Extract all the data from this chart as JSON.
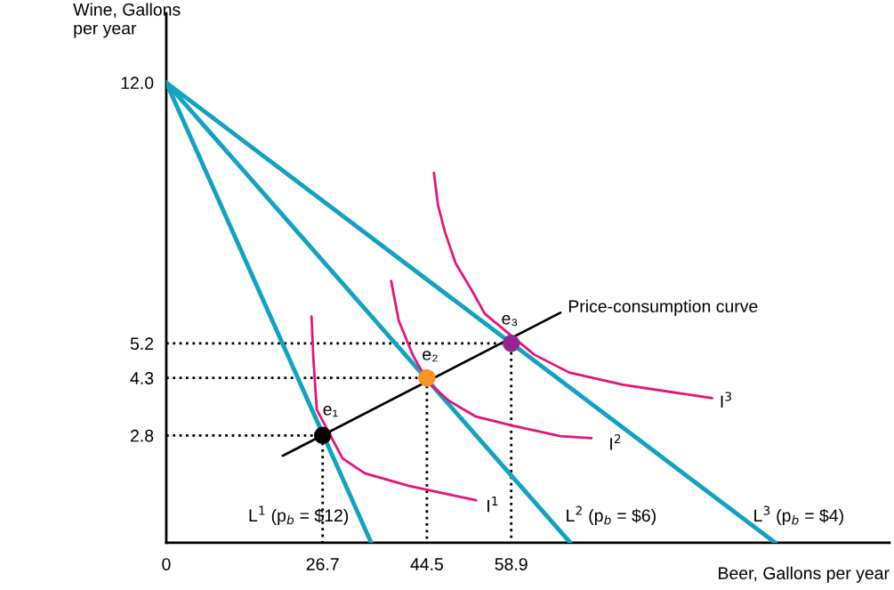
{
  "chart_data": {
    "type": "line",
    "xlabel": "Beer, Gallons per year",
    "ylabel": "Wine, Gallons\nper year",
    "xlim": [
      0,
      123.5
    ],
    "ylim": [
      0,
      13.8
    ],
    "xticks": [
      {
        "value": 0,
        "label": "0"
      },
      26.7,
      44.5,
      58.9
    ],
    "yticks": [
      2.8,
      4.3,
      5.2,
      {
        "value": 12,
        "label": "12.0"
      }
    ],
    "grid": false,
    "series": [
      {
        "name": "L$^{1}$ (p$_{b}$ = $12)",
        "color": "#12a2c4",
        "x": [
          0,
          35.0
        ],
        "values": [
          12.0,
          0
        ]
      },
      {
        "name": "L$^{2}$ (p$_{b}$ = $6)",
        "color": "#12a2c4",
        "x": [
          0,
          69.0
        ],
        "values": [
          12.0,
          0
        ]
      },
      {
        "name": "L$^{3}$ (p$_{b}$ = $4)",
        "color": "#12a2c4",
        "x": [
          0,
          104.0
        ],
        "values": [
          12.0,
          0
        ]
      },
      {
        "name": "Price-consumption curve",
        "color": "#000000",
        "x": [
          19.9,
          67.3
        ],
        "values": [
          2.27,
          6.0
        ]
      },
      {
        "name": "I$^{1}$",
        "color": "#e8127c",
        "x": [
          24.8,
          25.1,
          25.7,
          30.1,
          33.9,
          41.5,
          52.9
        ],
        "values": [
          5.9,
          4.86,
          3.47,
          2.2,
          1.81,
          1.48,
          1.11
        ]
      },
      {
        "name": "I$^{2}$",
        "color": "#e8127c",
        "x": [
          38.4,
          39.7,
          42.2,
          44.8,
          48.3,
          52.9,
          59.0,
          67.3,
          72.6
        ],
        "values": [
          6.83,
          5.79,
          4.86,
          4.17,
          3.7,
          3.29,
          3.06,
          2.78,
          2.73
        ]
      },
      {
        "name": "I$^{3}$",
        "color": "#e8127c",
        "x": [
          45.7,
          46.4,
          47.6,
          49.4,
          52.1,
          54.4,
          62.8,
          68.8,
          78.0,
          93.2
        ],
        "values": [
          9.65,
          8.8,
          8.1,
          7.29,
          6.6,
          5.97,
          4.91,
          4.44,
          4.12,
          3.77
        ]
      },
      {
        "color": "#000000",
        "line_style": "dotted",
        "x": [
          0,
          26.7,
          26.7
        ],
        "values": [
          2.8,
          2.8,
          0
        ]
      },
      {
        "color": "#000000",
        "line_style": "dotted",
        "x": [
          0,
          44.5,
          44.5
        ],
        "values": [
          4.3,
          4.3,
          0
        ]
      },
      {
        "color": "#000000",
        "line_style": "dotted",
        "x": [
          0,
          58.9,
          58.9
        ],
        "values": [
          5.2,
          5.2,
          0
        ]
      },
      {
        "type": "scatter",
        "name": "e₁",
        "color": "#000000",
        "x": [
          26.7
        ],
        "values": [
          2.8
        ]
      },
      {
        "type": "scatter",
        "name": "e₂",
        "color": "#f7941d",
        "x": [
          44.5
        ],
        "values": [
          4.3
        ]
      },
      {
        "type": "scatter",
        "name": "e₃",
        "color": "#93278f",
        "x": [
          58.9
        ],
        "values": [
          5.2
        ]
      }
    ]
  }
}
